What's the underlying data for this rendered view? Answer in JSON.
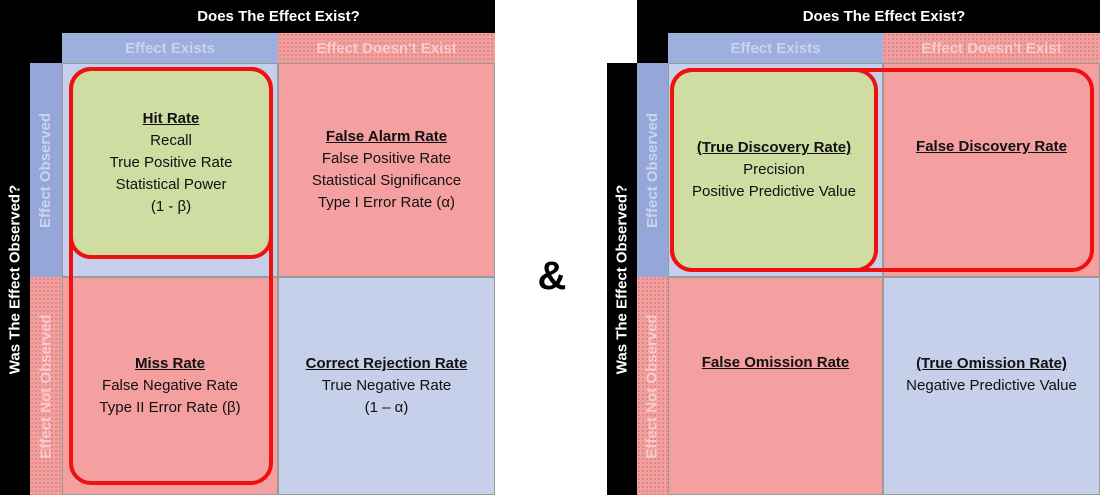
{
  "ampersand": "&",
  "left": {
    "top_header": "Does The Effect Exist?",
    "side_header": "Was The Effect Observed?",
    "col_exists": "Effect Exists",
    "col_not_exists": "Effect Doesn't Exist",
    "row_observed": "Effect Observed",
    "row_not_observed": "Effect Not Observed",
    "hit": {
      "title": "Hit Rate",
      "lines": [
        "Recall",
        "True Positive Rate",
        "Statistical Power",
        "(1 - β)"
      ]
    },
    "false_alarm": {
      "title": "False Alarm Rate",
      "lines": [
        "False Positive Rate",
        "Statistical Significance",
        "Type I Error Rate (α)"
      ]
    },
    "miss": {
      "title": "Miss Rate",
      "lines": [
        "False Negative Rate",
        "Type II Error Rate (β)"
      ]
    },
    "correct_rejection": {
      "title": "Correct Rejection Rate",
      "lines": [
        "True Negative Rate",
        "(1 – α)"
      ]
    }
  },
  "right": {
    "top_header": "Does The Effect Exist?",
    "side_header": "Was The Effect Observed?",
    "col_exists": "Effect Exists",
    "col_not_exists": "Effect Doesn't Exist",
    "row_observed": "Effect Observed",
    "row_not_observed": "Effect Not Observed",
    "true_discovery": {
      "title": "(True Discovery Rate)",
      "lines": [
        "Precision",
        "Positive Predictive Value"
      ]
    },
    "false_discovery": {
      "title": "False Discovery Rate",
      "lines": []
    },
    "false_omission": {
      "title": "False Omission Rate",
      "lines": []
    },
    "true_omission": {
      "title": "(True Omission Rate)",
      "lines": [
        "Negative Predictive Value"
      ]
    }
  }
}
